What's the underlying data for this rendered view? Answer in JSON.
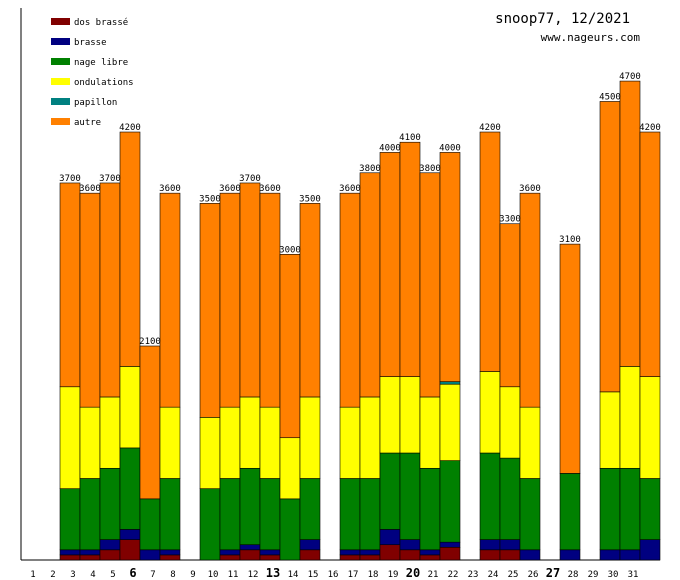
{
  "chart_data": {
    "type": "bar",
    "stacked": true,
    "title": "snoop77, 12/2021",
    "subtitle": "www.nageurs.com",
    "xlabel": "",
    "ylabel": "",
    "ylim": [
      0,
      4800
    ],
    "legend_position": "top-left",
    "categories": [
      "1",
      "2",
      "3",
      "4",
      "5",
      "6",
      "7",
      "8",
      "9",
      "10",
      "11",
      "12",
      "13",
      "14",
      "15",
      "16",
      "17",
      "18",
      "19",
      "20",
      "21",
      "22",
      "23",
      "24",
      "25",
      "26",
      "27",
      "28",
      "29",
      "30",
      "31"
    ],
    "bold_categories": [
      "6",
      "13",
      "20",
      "27"
    ],
    "totals": [
      0,
      3700,
      3600,
      3700,
      4200,
      2100,
      3600,
      0,
      3500,
      3600,
      3700,
      3600,
      3000,
      3500,
      0,
      3600,
      3800,
      4000,
      4100,
      3800,
      4000,
      0,
      4200,
      3300,
      3600,
      0,
      3100,
      0,
      4500,
      4700,
      4200
    ],
    "series": [
      {
        "name": "dos brassé",
        "color": "#800000",
        "values": [
          0,
          50,
          50,
          100,
          200,
          0,
          50,
          0,
          0,
          50,
          100,
          50,
          0,
          100,
          0,
          50,
          50,
          150,
          100,
          50,
          125,
          0,
          100,
          100,
          0,
          0,
          0,
          0,
          0,
          0,
          0
        ]
      },
      {
        "name": "brasse",
        "color": "#000080",
        "values": [
          0,
          50,
          50,
          100,
          100,
          100,
          50,
          0,
          0,
          50,
          50,
          50,
          0,
          100,
          0,
          50,
          50,
          150,
          100,
          50,
          50,
          0,
          100,
          100,
          100,
          0,
          100,
          0,
          100,
          100,
          200
        ]
      },
      {
        "name": "nage libre",
        "color": "#008000",
        "values": [
          0,
          600,
          700,
          700,
          800,
          500,
          700,
          0,
          700,
          700,
          750,
          700,
          600,
          600,
          0,
          700,
          700,
          750,
          850,
          800,
          800,
          0,
          850,
          800,
          700,
          0,
          750,
          0,
          800,
          800,
          600
        ]
      },
      {
        "name": "ondulations",
        "color": "#ffff00",
        "values": [
          0,
          1000,
          700,
          700,
          800,
          0,
          700,
          0,
          700,
          700,
          700,
          700,
          600,
          800,
          0,
          700,
          800,
          750,
          750,
          700,
          750,
          0,
          800,
          700,
          700,
          0,
          0,
          0,
          750,
          1000,
          1000
        ]
      },
      {
        "name": "papillon",
        "color": "#008080",
        "values": [
          0,
          0,
          0,
          0,
          0,
          0,
          0,
          0,
          0,
          0,
          0,
          0,
          0,
          0,
          0,
          0,
          0,
          0,
          0,
          0,
          25,
          0,
          0,
          0,
          0,
          0,
          0,
          0,
          0,
          0,
          0
        ]
      },
      {
        "name": "autre",
        "color": "#ff8000",
        "values": [
          0,
          2000,
          2100,
          2100,
          2300,
          1500,
          2100,
          0,
          2100,
          2100,
          2100,
          2100,
          1800,
          1900,
          0,
          2100,
          2200,
          2200,
          2300,
          2200,
          2250,
          0,
          2350,
          1600,
          2100,
          0,
          2250,
          0,
          2850,
          2800,
          2400
        ]
      }
    ]
  }
}
